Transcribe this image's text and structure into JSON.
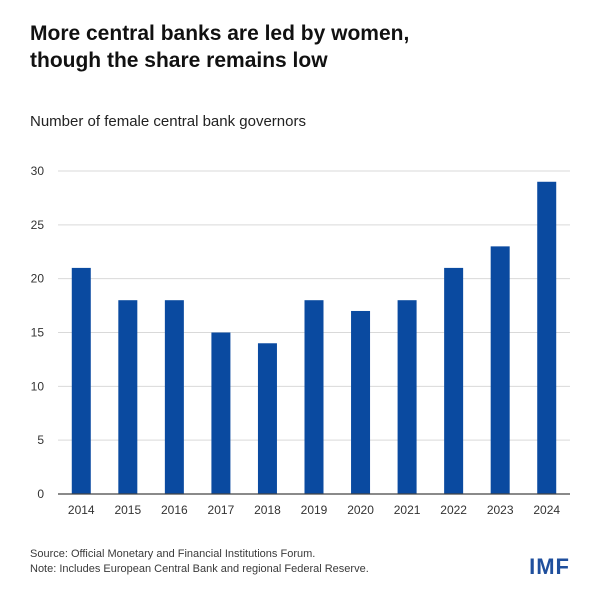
{
  "title_line1": "More central banks are led by women,",
  "title_line2": "though the share remains low",
  "subtitle": "Number of female central bank governors",
  "source": "Source: Official Monetary and Financial Institutions Forum.",
  "note": "Note: Includes European Central Bank and regional Federal Reserve.",
  "logo": "IMF",
  "colors": {
    "bar": "#0a4aa0",
    "grid": "#d9d9d9",
    "axis": "#444444",
    "logo": "#1f4f9d"
  },
  "chart_data": {
    "type": "bar",
    "categories": [
      "2014",
      "2015",
      "2016",
      "2017",
      "2018",
      "2019",
      "2020",
      "2021",
      "2022",
      "2023",
      "2024"
    ],
    "values": [
      21,
      18,
      18,
      15,
      14,
      18,
      17,
      18,
      21,
      23,
      29
    ],
    "ylim": [
      0,
      30
    ],
    "yticks": [
      0,
      5,
      10,
      15,
      20,
      25,
      30
    ],
    "grid": true,
    "legend": "none"
  }
}
